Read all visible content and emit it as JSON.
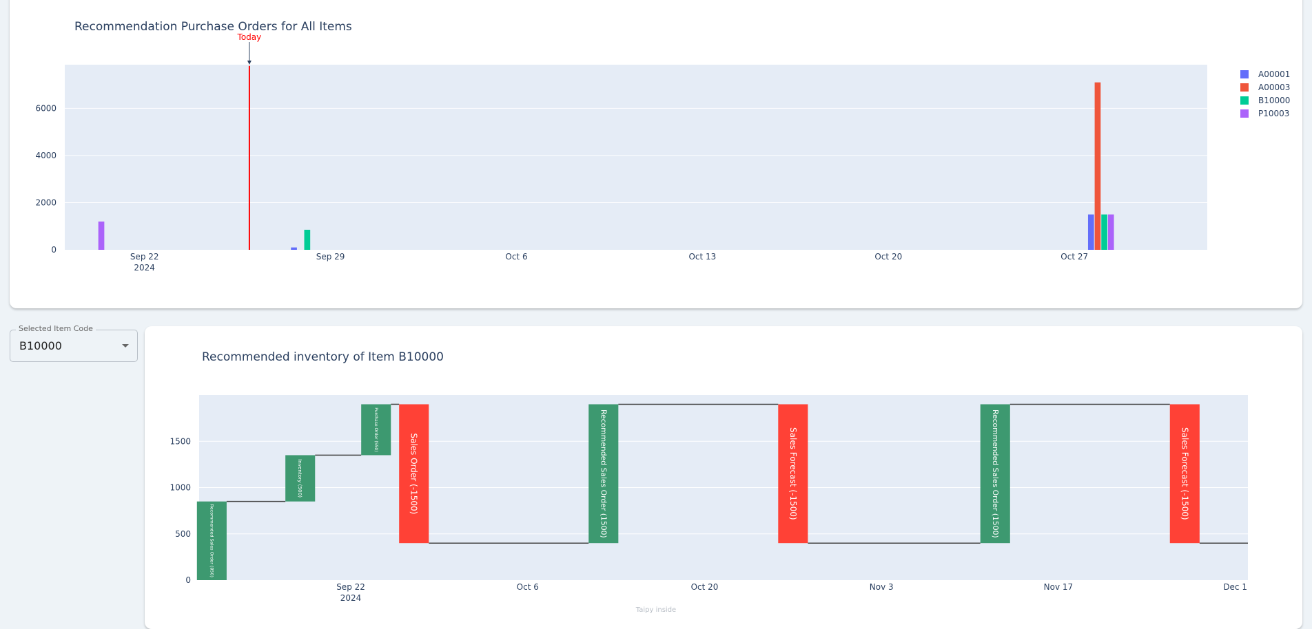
{
  "select": {
    "label": "Selected Item Code",
    "value": "B10000"
  },
  "colors": {
    "A00001": "#636efa",
    "A00003": "#ef553b",
    "B10000": "#00cc96",
    "P10003": "#ab63fa",
    "increase": "#3d9970",
    "decrease": "#ff4136",
    "today": "#ff0000",
    "plot_bg": "#e5ecf6"
  },
  "chart_data": [
    {
      "type": "bar",
      "title": "Recommendation Purchase Orders for All Items",
      "xlabel": "",
      "ylabel": "",
      "x_axis": "date",
      "x_range": [
        "2024-09-19",
        "2024-11-01"
      ],
      "ylim": [
        0,
        7850
      ],
      "yticks": [
        0,
        2000,
        4000,
        6000
      ],
      "xticks": [
        {
          "date": "2024-09-22",
          "label": "Sep 22",
          "sublabel": "2024"
        },
        {
          "date": "2024-09-29",
          "label": "Sep 29",
          "sublabel": ""
        },
        {
          "date": "2024-10-06",
          "label": "Oct 6",
          "sublabel": ""
        },
        {
          "date": "2024-10-13",
          "label": "Oct 13",
          "sublabel": ""
        },
        {
          "date": "2024-10-20",
          "label": "Oct 20",
          "sublabel": ""
        },
        {
          "date": "2024-10-27",
          "label": "Oct 27",
          "sublabel": ""
        }
      ],
      "legend_position": "top-right",
      "series": [
        {
          "name": "A00001",
          "points": [
            {
              "date": "2024-09-28",
              "value": 100
            },
            {
              "date": "2024-10-28",
              "value": 1500
            }
          ]
        },
        {
          "name": "A00003",
          "points": [
            {
              "date": "2024-10-28",
              "value": 7100
            }
          ]
        },
        {
          "name": "B10000",
          "points": [
            {
              "date": "2024-09-28",
              "value": 850
            },
            {
              "date": "2024-10-28",
              "value": 1500
            }
          ]
        },
        {
          "name": "P10003",
          "points": [
            {
              "date": "2024-09-20",
              "value": 1200
            },
            {
              "date": "2024-10-28",
              "value": 1500
            }
          ]
        }
      ],
      "annotation": {
        "date": "2024-09-26",
        "label": "Today",
        "value": 7800
      }
    },
    {
      "type": "waterfall",
      "title": "Recommended inventory of Item B10000",
      "xlabel": "",
      "ylabel": "",
      "x_axis": "date",
      "x_range": [
        "2024-09-10",
        "2024-12-02"
      ],
      "ylim": [
        0,
        2000
      ],
      "yticks": [
        0,
        500,
        1000,
        1500
      ],
      "xticks": [
        {
          "date": "2024-09-22",
          "label": "Sep 22",
          "sublabel": "2024"
        },
        {
          "date": "2024-10-06",
          "label": "Oct 6",
          "sublabel": ""
        },
        {
          "date": "2024-10-20",
          "label": "Oct 20",
          "sublabel": ""
        },
        {
          "date": "2024-11-03",
          "label": "Nov 3",
          "sublabel": ""
        },
        {
          "date": "2024-11-17",
          "label": "Nov 17",
          "sublabel": ""
        },
        {
          "date": "2024-12-01",
          "label": "Dec 1",
          "sublabel": ""
        }
      ],
      "steps": [
        {
          "date": "2024-09-11",
          "label": "Recommended Sales Order (850)",
          "delta": 850
        },
        {
          "date": "2024-09-18",
          "label": "Inventory (500)",
          "delta": 500
        },
        {
          "date": "2024-09-24",
          "label": "Purchase Order (550)",
          "delta": 550
        },
        {
          "date": "2024-09-27",
          "label": "Sales Order (-1500)",
          "delta": -1500
        },
        {
          "date": "2024-10-12",
          "label": "Recommended Sales Order (1500)",
          "delta": 1500
        },
        {
          "date": "2024-10-27",
          "label": "Sales Forecast (-1500)",
          "delta": -1500
        },
        {
          "date": "2024-11-12",
          "label": "Recommended Sales Order (1500)",
          "delta": 1500
        },
        {
          "date": "2024-11-27",
          "label": "Sales Forecast (-1500)",
          "delta": -1500
        }
      ],
      "end_date": "2024-12-02",
      "watermark": "Taipy inside"
    }
  ]
}
